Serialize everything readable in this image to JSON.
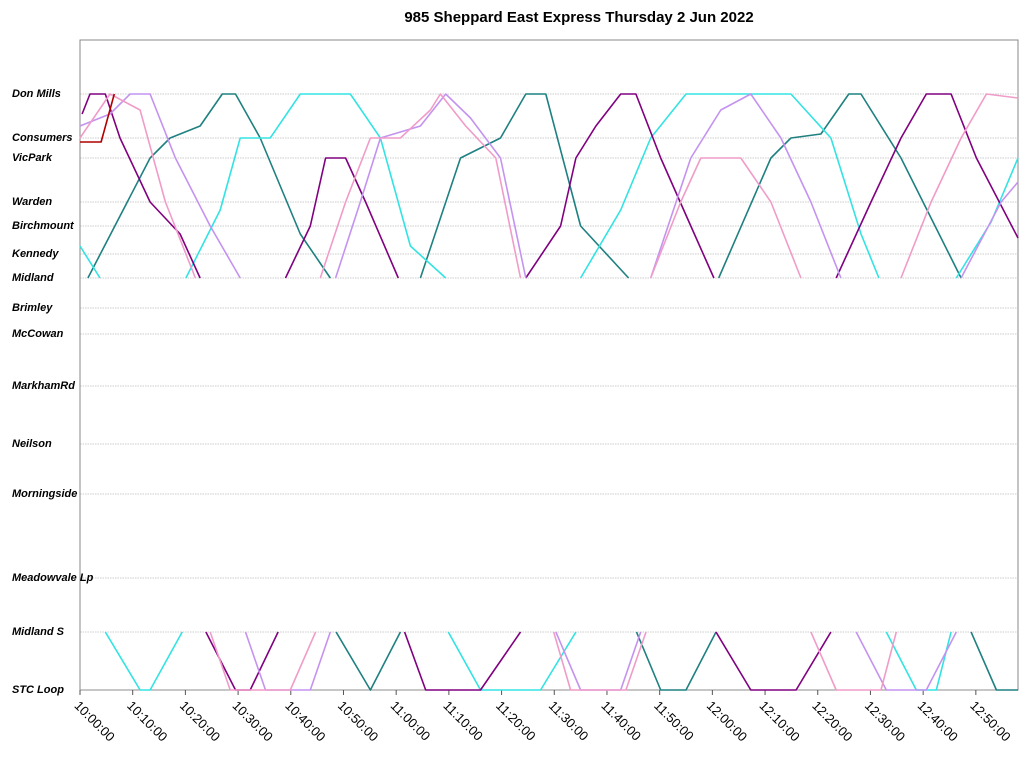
{
  "chart_data": {
    "type": "line",
    "title": "985 Sheppard East Express Thursday 2 Jun 2022",
    "xlim": [
      600,
      778
    ],
    "xticks": [
      {
        "value": 600,
        "label": "10:00:00"
      },
      {
        "value": 610,
        "label": "10:10:00"
      },
      {
        "value": 620,
        "label": "10:20:00"
      },
      {
        "value": 630,
        "label": "10:30:00"
      },
      {
        "value": 640,
        "label": "10:40:00"
      },
      {
        "value": 650,
        "label": "10:50:00"
      },
      {
        "value": 660,
        "label": "11:00:00"
      },
      {
        "value": 670,
        "label": "11:10:00"
      },
      {
        "value": 680,
        "label": "11:20:00"
      },
      {
        "value": 690,
        "label": "11:30:00"
      },
      {
        "value": 700,
        "label": "11:40:00"
      },
      {
        "value": 710,
        "label": "11:50:00"
      },
      {
        "value": 720,
        "label": "12:00:00"
      },
      {
        "value": 730,
        "label": "12:10:00"
      },
      {
        "value": 740,
        "label": "12:20:00"
      },
      {
        "value": 750,
        "label": "12:30:00"
      },
      {
        "value": 760,
        "label": "12:40:00"
      },
      {
        "value": 770,
        "label": "12:50:00"
      }
    ],
    "ylim": [
      -1.35,
      14.9
    ],
    "y_inverted": true,
    "yticks": [
      {
        "value": 0,
        "label": "Don Mills"
      },
      {
        "value": 1.1,
        "label": "Consumers"
      },
      {
        "value": 1.6,
        "label": "VicPark"
      },
      {
        "value": 2.7,
        "label": "Warden"
      },
      {
        "value": 3.3,
        "label": "Birchmount"
      },
      {
        "value": 4.0,
        "label": "Kennedy"
      },
      {
        "value": 4.6,
        "label": "Midland"
      },
      {
        "value": 5.35,
        "label": "Brimley"
      },
      {
        "value": 6.0,
        "label": "McCowan"
      },
      {
        "value": 7.3,
        "label": "MarkhamRd"
      },
      {
        "value": 8.75,
        "label": "Neilson"
      },
      {
        "value": 10.0,
        "label": "Morningside"
      },
      {
        "value": 12.1,
        "label": "Meadowvale Lp"
      },
      {
        "value": 13.45,
        "label": "Midland S"
      },
      {
        "value": 14.9,
        "label": "STC Loop"
      }
    ],
    "grid": true,
    "series": [
      {
        "color": "#1f8080",
        "x": [
          601.5,
          613.3,
          617.1,
          622.8,
          627,
          629.5,
          634.2,
          641.8,
          647.5,
          null,
          648.6,
          655.1,
          660.8,
          null,
          664.6,
          672.2,
          679.8,
          684.6,
          688.4,
          695,
          704.1,
          null,
          705.6,
          710.2,
          715,
          720.7,
          null,
          721.2,
          731.1,
          734.9,
          740.6,
          745.9,
          748.2,
          755.8,
          767.2,
          null,
          769.1,
          773.9,
          778
        ],
        "values": [
          4.6,
          1.6,
          1.1,
          0.8,
          0,
          0,
          1.1,
          3.5,
          4.6,
          null,
          13.45,
          14.9,
          13.45,
          null,
          4.6,
          1.6,
          1.1,
          0,
          0,
          3.3,
          4.6,
          null,
          13.45,
          14.9,
          14.9,
          13.45,
          null,
          4.6,
          1.6,
          1.1,
          1.0,
          0,
          0,
          1.6,
          4.6,
          null,
          13.45,
          14.9,
          14.9
        ]
      },
      {
        "color": "#33e3e3",
        "x": [
          600,
          603.8,
          null,
          604.8,
          611.4,
          613.3,
          619.4,
          null,
          620.1,
          626.6,
          630.4,
          636.1,
          641.8,
          651.3,
          657,
          662.7,
          669.4,
          null,
          669.9,
          676,
          687.4,
          694.1,
          null,
          695,
          702.6,
          708.3,
          715,
          734.9,
          742.5,
          748.2,
          751.6,
          null,
          753,
          758.7,
          762.5,
          765.3,
          null,
          766.3,
          772.9,
          778
        ],
        "values": [
          3.8,
          4.6,
          null,
          13.45,
          14.9,
          14.9,
          13.45,
          null,
          4.6,
          2.9,
          1.1,
          1.1,
          0,
          0,
          1.1,
          3.8,
          4.6,
          null,
          13.45,
          14.9,
          14.9,
          13.45,
          null,
          4.6,
          2.9,
          1.1,
          0,
          0,
          1.1,
          3.5,
          4.6,
          null,
          13.45,
          14.9,
          14.9,
          13.45,
          null,
          4.6,
          3.2,
          1.6
        ]
      },
      {
        "color": "#800080",
        "x": [
          600.4,
          601.9,
          604.8,
          607.6,
          613.3,
          619,
          622.8,
          null,
          623.9,
          629.5,
          632.3,
          637.6,
          null,
          639,
          643.7,
          646.6,
          650.4,
          654.2,
          660.4,
          null,
          661.6,
          665.6,
          676,
          683.6,
          null,
          684.6,
          691.2,
          694.1,
          697.9,
          702.6,
          705.5,
          710.2,
          715.9,
          720.3,
          null,
          720.7,
          727.3,
          735.9,
          742.5,
          null,
          743.5,
          750.1,
          755.8,
          760.6,
          765.3,
          770.1,
          778
        ],
        "values": [
          0.5,
          0,
          0,
          1.1,
          2.7,
          3.5,
          4.6,
          null,
          13.45,
          14.9,
          14.9,
          13.45,
          null,
          4.6,
          3.3,
          1.6,
          1.6,
          2.7,
          4.6,
          null,
          13.45,
          14.9,
          14.9,
          13.45,
          null,
          4.6,
          3.3,
          1.6,
          0.8,
          0,
          0,
          1.6,
          3.3,
          4.6,
          null,
          13.45,
          14.9,
          14.9,
          13.45,
          null,
          4.6,
          2.7,
          1.1,
          0,
          0,
          1.6,
          3.6
        ]
      },
      {
        "color": "#c493f0",
        "x": [
          600,
          605.7,
          609.5,
          613.3,
          618.1,
          624.7,
          630.4,
          null,
          631.4,
          635.2,
          643.7,
          647.5,
          null,
          648.5,
          653.2,
          657,
          664.6,
          669.4,
          674.1,
          679.8,
          684.6,
          null,
          690.3,
          695,
          702.6,
          706.4,
          null,
          708.3,
          715.9,
          721.6,
          727.3,
          733,
          738.7,
          744.4,
          null,
          747.3,
          753,
          760.6,
          766.3,
          null,
          767.2,
          774.8,
          778
        ],
        "values": [
          0.8,
          0.5,
          0,
          0,
          1.6,
          3.3,
          4.6,
          null,
          13.45,
          14.9,
          14.9,
          13.45,
          null,
          4.6,
          2.7,
          1.1,
          0.8,
          0,
          0.6,
          1.6,
          4.6,
          null,
          13.45,
          14.9,
          14.9,
          13.45,
          null,
          4.6,
          1.6,
          0.4,
          0,
          1.1,
          2.7,
          4.6,
          null,
          13.45,
          14.9,
          14.9,
          13.45,
          null,
          4.6,
          2.7,
          2.2
        ]
      },
      {
        "color": "#f09cc8",
        "x": [
          600,
          605.7,
          611.4,
          616.2,
          621.9,
          null,
          624.7,
          628.5,
          639.9,
          644.7,
          null,
          645.6,
          650.4,
          655.1,
          660.8,
          666.5,
          668.4,
          673.2,
          678.9,
          683.6,
          null,
          689.9,
          693.1,
          698.8,
          703.6,
          707.4,
          null,
          708.3,
          714,
          717.8,
          725.4,
          731.1,
          736.8,
          null,
          738.7,
          743.5,
          752,
          754.9,
          null,
          755.8,
          761.5,
          767.2,
          772,
          778
        ],
        "values": [
          1.1,
          0,
          0.4,
          2.7,
          4.6,
          null,
          13.45,
          14.9,
          14.9,
          13.45,
          null,
          4.6,
          2.7,
          1.1,
          1.1,
          0.4,
          0,
          0.8,
          1.6,
          4.6,
          null,
          13.45,
          14.9,
          14.9,
          14.9,
          13.45,
          null,
          4.6,
          2.7,
          1.6,
          1.6,
          2.7,
          4.6,
          null,
          13.45,
          14.9,
          14.9,
          13.45,
          null,
          4.6,
          2.7,
          1.1,
          0,
          0.1
        ]
      },
      {
        "color": "#b00000",
        "x": [
          600,
          604,
          606.5
        ],
        "values": [
          1.2,
          1.2,
          0
        ]
      }
    ]
  }
}
